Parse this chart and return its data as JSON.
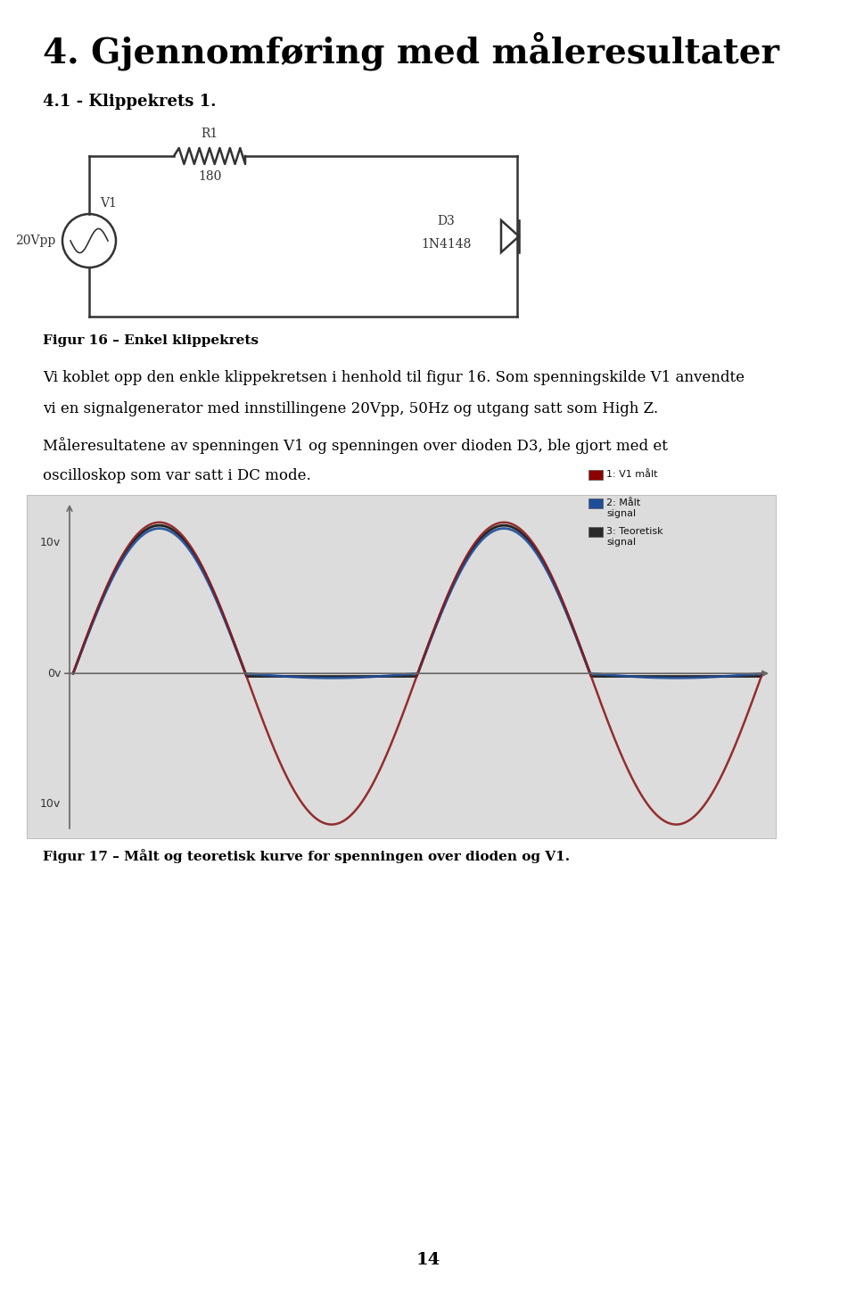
{
  "title": "4. Gjennomføring med måleresultater",
  "section": "4.1 - Klippekrets 1.",
  "fig16_caption": "Figur 16 – Enkel klippekrets",
  "body_text1": "Vi koblet opp den enkle klippekretsen i henhold til figur 16. Som spenningskilde V1 anvendte",
  "body_text2": "vi en signalgenerator med innstillingene 20Vpp, 50Hz og utgang satt som High Z.",
  "body_text3": "Måleresultatene av spenningen V1 og spenningen over dioden D3, ble gjort med et",
  "body_text4": "oscilloskop som var satt i DC mode.",
  "fig17_caption": "Figur 17 – Målt og teoretisk kurve for spenningen over dioden og V1.",
  "page_number": "14",
  "legend_entries": [
    "1: V1 målt",
    "2: Målt\n   signal",
    "3: Teoretisk\n   signal"
  ],
  "legend_colors": [
    "#8B0000",
    "#1E4D99",
    "#2a2a2a"
  ],
  "bg_color": "#ffffff",
  "text_color": "#000000"
}
